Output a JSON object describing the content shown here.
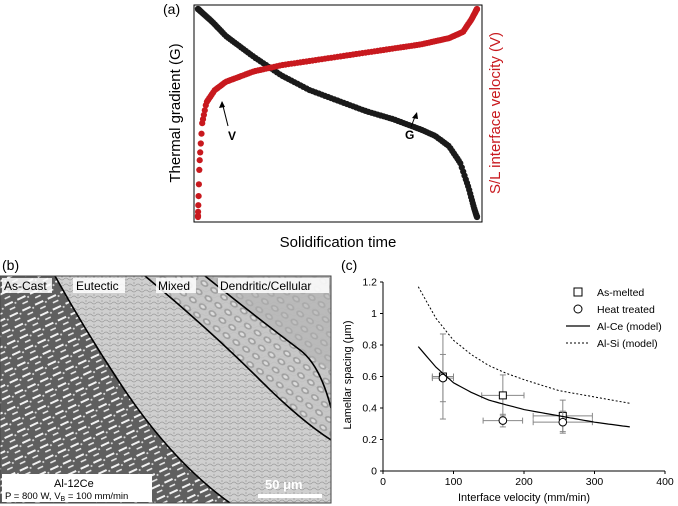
{
  "panel_a": {
    "label": "(a)",
    "xlabel": "Solidification time",
    "ylabel_left": "Thermal gradient (G)",
    "ylabel_right": "S/L interface velocity (V)",
    "annotations": [
      {
        "text": "V",
        "series": "V"
      },
      {
        "text": "G",
        "series": "G"
      }
    ],
    "colors": {
      "G": "#1a1a1a",
      "V": "#c8191e"
    }
  },
  "panel_b": {
    "label": "(b)",
    "regions": [
      "As-Cast",
      "Eutectic",
      "Mixed",
      "Dendritic/Cellular"
    ],
    "alloy": "Al-12Ce",
    "params": "P = 800 W, V",
    "params_sub": "B",
    "params_rest": " = 100 mm/min",
    "scale_bar": "50 μm"
  },
  "panel_c": {
    "label": "(c)",
    "legend": [
      {
        "label": "As-melted",
        "marker": "square"
      },
      {
        "label": "Heat treated",
        "marker": "circle"
      },
      {
        "label": "Al-Ce (model)",
        "line": "solid"
      },
      {
        "label": "Al-Si (model)",
        "line": "dashed"
      }
    ]
  },
  "chart_data": [
    {
      "type": "line",
      "panel": "(a)",
      "xlabel": "Solidification time",
      "ylabel": "Thermal gradient (G)",
      "y2label": "S/L interface velocity (V)",
      "series": [
        {
          "name": "G",
          "x": [
            0,
            0.05,
            0.1,
            0.2,
            0.3,
            0.4,
            0.5,
            0.6,
            0.7,
            0.8,
            0.85,
            0.9,
            0.94,
            0.97,
            0.99,
            1.0
          ],
          "y": [
            1.0,
            0.94,
            0.87,
            0.77,
            0.68,
            0.61,
            0.56,
            0.51,
            0.47,
            0.42,
            0.39,
            0.34,
            0.26,
            0.14,
            0.04,
            0.0
          ]
        },
        {
          "name": "V",
          "x": [
            0,
            0.005,
            0.015,
            0.03,
            0.06,
            0.1,
            0.2,
            0.3,
            0.4,
            0.5,
            0.6,
            0.7,
            0.8,
            0.9,
            0.95,
            0.98,
            1.0
          ],
          "y": [
            0.0,
            0.25,
            0.45,
            0.55,
            0.61,
            0.65,
            0.7,
            0.73,
            0.75,
            0.77,
            0.79,
            0.81,
            0.83,
            0.86,
            0.89,
            0.95,
            1.0
          ]
        }
      ]
    },
    {
      "type": "scatter",
      "panel": "(c)",
      "xlabel": "Interface velocity (mm/min)",
      "ylabel": "Lamellar spacing (μm)",
      "xlim": [
        0,
        400
      ],
      "ylim": [
        0,
        1.2
      ],
      "xticks": [
        0,
        100,
        200,
        300,
        400
      ],
      "yticks": [
        0,
        0.2,
        0.4,
        0.6,
        0.8,
        1,
        1.2
      ],
      "tick_labels_y": [
        "0",
        "0.2",
        "0.4",
        "0.6",
        "0.8",
        "1",
        "1.2"
      ],
      "tick_labels_x": [
        "0",
        "100",
        "200",
        "300",
        "400"
      ],
      "series": [
        {
          "name": "As-melted",
          "marker": "square",
          "points": [
            {
              "x": 85,
              "y": 0.6,
              "xerr": 15,
              "yerr": 0.27
            },
            {
              "x": 170,
              "y": 0.48,
              "xerr": 30,
              "yerr": 0.13
            },
            {
              "x": 255,
              "y": 0.35,
              "xerr": 42,
              "yerr": 0.1
            }
          ]
        },
        {
          "name": "Heat treated",
          "marker": "circle",
          "points": [
            {
              "x": 85,
              "y": 0.59,
              "xerr": 15,
              "yerr": 0.15
            },
            {
              "x": 170,
              "y": 0.32,
              "xerr": 28,
              "yerr": 0.04
            },
            {
              "x": 255,
              "y": 0.31,
              "xerr": 42,
              "yerr": 0.07
            }
          ]
        },
        {
          "name": "Al-Ce (model)",
          "line": "solid",
          "x": [
            50,
            75,
            100,
            125,
            150,
            175,
            200,
            250,
            300,
            350
          ],
          "y": [
            0.79,
            0.66,
            0.56,
            0.5,
            0.45,
            0.42,
            0.39,
            0.35,
            0.31,
            0.28
          ]
        },
        {
          "name": "Al-Si (model)",
          "line": "dashed",
          "x": [
            50,
            75,
            100,
            125,
            150,
            175,
            200,
            250,
            300,
            350
          ],
          "y": [
            1.17,
            0.97,
            0.83,
            0.74,
            0.67,
            0.62,
            0.58,
            0.51,
            0.47,
            0.43
          ]
        }
      ]
    }
  ]
}
